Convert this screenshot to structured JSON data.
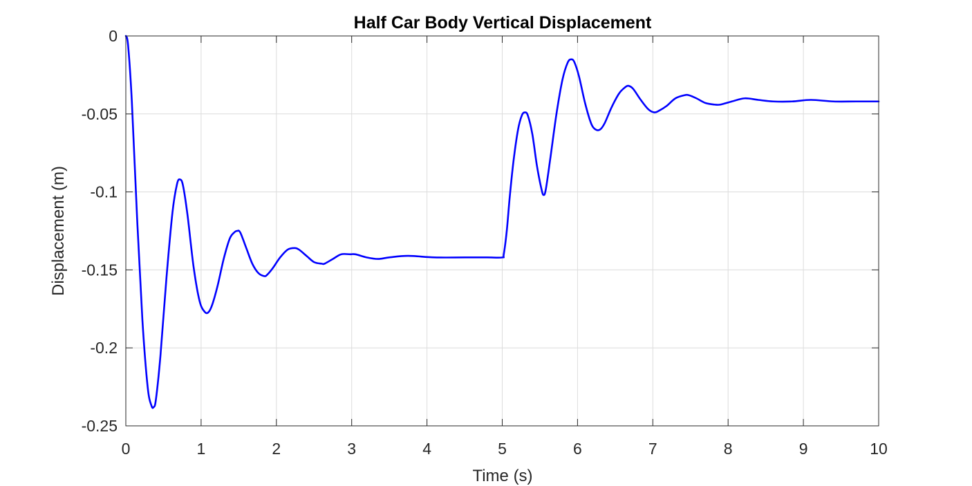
{
  "chart_data": {
    "type": "line",
    "title": "Half Car Body Vertical Displacement",
    "xlabel": "Time (s)",
    "ylabel": "Displacement (m)",
    "xlim": [
      0,
      10
    ],
    "ylim": [
      -0.25,
      0
    ],
    "xticks": [
      0,
      1,
      2,
      3,
      4,
      5,
      6,
      7,
      8,
      9,
      10
    ],
    "xtick_labels": [
      "0",
      "1",
      "2",
      "3",
      "4",
      "5",
      "6",
      "7",
      "8",
      "9",
      "10"
    ],
    "yticks": [
      0,
      -0.05,
      -0.1,
      -0.15,
      -0.2,
      -0.25
    ],
    "ytick_labels": [
      "0",
      "-0.05",
      "-0.1",
      "-0.15",
      "-0.2",
      "-0.25"
    ],
    "grid": true,
    "colors": {
      "line": "#0000ff",
      "grid": "#dcdcdc",
      "axes": "#262626"
    },
    "series": [
      {
        "x": [
          0,
          0.03,
          0.08,
          0.15,
          0.22,
          0.29,
          0.34,
          0.37,
          0.4,
          0.46,
          0.54,
          0.62,
          0.68,
          0.72,
          0.76,
          0.82,
          0.9,
          0.98,
          1.05,
          1.1,
          1.15,
          1.22,
          1.3,
          1.38,
          1.44,
          1.48,
          1.52,
          1.6,
          1.68,
          1.76,
          1.84,
          1.88,
          1.95,
          2.05,
          2.15,
          2.24,
          2.3,
          2.4,
          2.5,
          2.6,
          2.64,
          2.75,
          2.86,
          2.98,
          3.05,
          3.2,
          3.35,
          3.5,
          3.75,
          4.1,
          4.5,
          4.8,
          5.0,
          5.02,
          5.06,
          5.1,
          5.15,
          5.21,
          5.26,
          5.3,
          5.34,
          5.4,
          5.46,
          5.52,
          5.55,
          5.58,
          5.64,
          5.72,
          5.8,
          5.87,
          5.92,
          5.96,
          6.02,
          6.1,
          6.18,
          6.24,
          6.3,
          6.36,
          6.45,
          6.55,
          6.63,
          6.68,
          6.74,
          6.84,
          6.94,
          7.02,
          7.08,
          7.18,
          7.3,
          7.42,
          7.48,
          7.58,
          7.7,
          7.82,
          7.9,
          8.05,
          8.22,
          8.4,
          8.6,
          8.85,
          9.1,
          9.4,
          9.7,
          10.0
        ],
        "y": [
          0,
          -0.006,
          -0.042,
          -0.117,
          -0.182,
          -0.225,
          -0.237,
          -0.238,
          -0.233,
          -0.205,
          -0.155,
          -0.113,
          -0.095,
          -0.092,
          -0.096,
          -0.115,
          -0.148,
          -0.17,
          -0.177,
          -0.177,
          -0.172,
          -0.16,
          -0.143,
          -0.13,
          -0.126,
          -0.125,
          -0.126,
          -0.136,
          -0.146,
          -0.152,
          -0.154,
          -0.153,
          -0.149,
          -0.142,
          -0.137,
          -0.136,
          -0.137,
          -0.141,
          -0.145,
          -0.146,
          -0.146,
          -0.143,
          -0.14,
          -0.14,
          -0.14,
          -0.142,
          -0.143,
          -0.142,
          -0.141,
          -0.142,
          -0.142,
          -0.142,
          -0.142,
          -0.14,
          -0.125,
          -0.103,
          -0.08,
          -0.06,
          -0.051,
          -0.049,
          -0.051,
          -0.063,
          -0.083,
          -0.098,
          -0.102,
          -0.098,
          -0.078,
          -0.05,
          -0.028,
          -0.017,
          -0.015,
          -0.017,
          -0.026,
          -0.043,
          -0.056,
          -0.06,
          -0.06,
          -0.056,
          -0.046,
          -0.037,
          -0.033,
          -0.032,
          -0.034,
          -0.041,
          -0.047,
          -0.049,
          -0.048,
          -0.045,
          -0.04,
          -0.038,
          -0.038,
          -0.04,
          -0.043,
          -0.044,
          -0.044,
          -0.042,
          -0.04,
          -0.041,
          -0.042,
          -0.042,
          -0.041,
          -0.042,
          -0.042,
          -0.042
        ]
      }
    ]
  }
}
